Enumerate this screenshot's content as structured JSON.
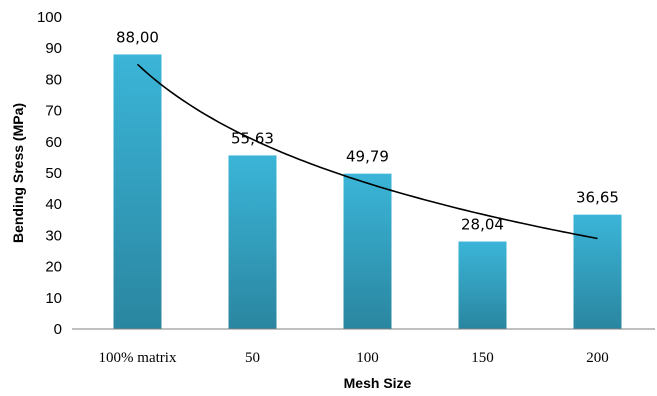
{
  "chart_data": {
    "type": "bar",
    "categories": [
      "100% matrix",
      "50",
      "100",
      "150",
      "200"
    ],
    "values": [
      88.0,
      55.63,
      49.79,
      28.04,
      36.65
    ],
    "data_labels": [
      "88,00",
      "55,63",
      "49,79",
      "28,04",
      "36,65"
    ],
    "xlabel": "Mesh Size",
    "ylabel": "Bending Sress (MPa)",
    "ylim": [
      0,
      100
    ],
    "yticks": [
      0,
      10,
      20,
      30,
      40,
      50,
      60,
      70,
      80,
      90,
      100
    ],
    "grid": false,
    "legend": "none",
    "trendline": {
      "type": "logarithmic",
      "color": "#000000"
    },
    "bar_color_top": "#3bb5d8",
    "bar_color_bottom": "#2a86a0"
  }
}
